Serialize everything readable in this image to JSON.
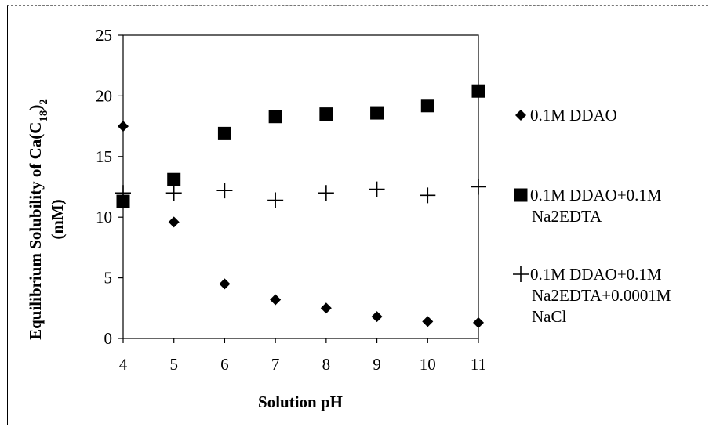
{
  "chart_data": {
    "type": "scatter",
    "title": "",
    "xlabel": "Solution pH",
    "ylabel_main": "Equilibrium Solubility of Ca(C",
    "ylabel_sub1": "18",
    "ylabel_mid": ")",
    "ylabel_sub2": "2",
    "ylabel_line2": "(mM)",
    "xlim": [
      4,
      11
    ],
    "ylim": [
      0,
      25
    ],
    "x_ticks": [
      "4",
      "5",
      "6",
      "7",
      "8",
      "9",
      "10",
      "11"
    ],
    "y_ticks": [
      "0",
      "5",
      "10",
      "15",
      "20",
      "25"
    ],
    "grid": false,
    "legend_position": "right",
    "series": [
      {
        "name": "0.1M DDAO",
        "legend_lines": [
          "0.1M DDAO"
        ],
        "marker": "diamond",
        "x": [
          4,
          5,
          6,
          7,
          8,
          9,
          10,
          11
        ],
        "y": [
          17.5,
          9.6,
          4.5,
          3.2,
          2.5,
          1.8,
          1.4,
          1.3
        ]
      },
      {
        "name": "0.1M DDAO+0.1M Na2EDTA",
        "legend_lines": [
          "0.1M DDAO+0.1M",
          "Na2EDTA"
        ],
        "marker": "square",
        "x": [
          4,
          5,
          6,
          7,
          8,
          9,
          10,
          11
        ],
        "y": [
          11.3,
          13.1,
          16.9,
          18.3,
          18.5,
          18.6,
          19.2,
          20.4
        ]
      },
      {
        "name": "0.1M DDAO+0.1M Na2EDTA+0.0001M NaCl",
        "legend_lines": [
          "0.1M DDAO+0.1M",
          "Na2EDTA+0.0001M",
          "NaCl"
        ],
        "marker": "plus",
        "x": [
          4,
          5,
          6,
          7,
          8,
          9,
          10,
          11
        ],
        "y": [
          12.0,
          12.0,
          12.2,
          11.4,
          12.0,
          12.3,
          11.8,
          12.5
        ]
      }
    ]
  }
}
